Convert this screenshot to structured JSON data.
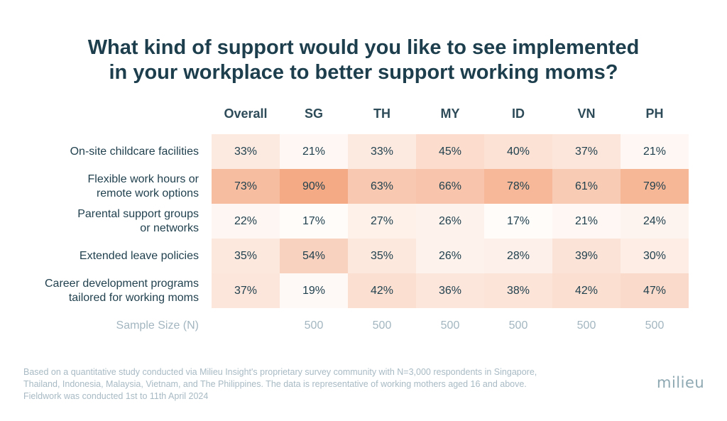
{
  "title": {
    "line1": "What kind of support would you like to see implemented",
    "line2": "in your workplace to better support working moms?"
  },
  "chart_data": {
    "type": "table",
    "columns": [
      "Overall",
      "SG",
      "TH",
      "MY",
      "ID",
      "VN",
      "PH"
    ],
    "rows": [
      {
        "label_lines": [
          "On-site childcare facilities"
        ],
        "values": [
          33,
          21,
          33,
          45,
          40,
          37,
          21
        ]
      },
      {
        "label_lines": [
          "Flexible work hours or",
          "remote work options"
        ],
        "values": [
          73,
          90,
          63,
          66,
          78,
          61,
          79
        ]
      },
      {
        "label_lines": [
          "Parental support groups",
          "or networks"
        ],
        "values": [
          22,
          17,
          27,
          26,
          17,
          21,
          24
        ]
      },
      {
        "label_lines": [
          "Extended leave policies"
        ],
        "values": [
          35,
          54,
          35,
          26,
          28,
          39,
          30
        ]
      },
      {
        "label_lines": [
          "Career development programs",
          "tailored for working moms"
        ],
        "values": [
          37,
          19,
          42,
          36,
          38,
          42,
          47
        ]
      }
    ],
    "value_suffix": "%",
    "sample_size": {
      "label": "Sample Size (N)",
      "values": [
        "",
        "500",
        "500",
        "500",
        "500",
        "500",
        "500"
      ]
    },
    "heat_color": "#f4a882",
    "text_color": "#1f3f4d"
  },
  "footnote": {
    "line1": "Based on a quantitative study conducted via Milieu Insight's proprietary survey community with N=3,000 respondents in Singapore,",
    "line2": "Thailand, Indonesia, Malaysia, Vietnam, and The Philippines. The data is representative of working mothers aged 16 and above.",
    "line3": "Fieldwork was conducted 1st to 11th April 2024"
  },
  "logo": "milieu"
}
